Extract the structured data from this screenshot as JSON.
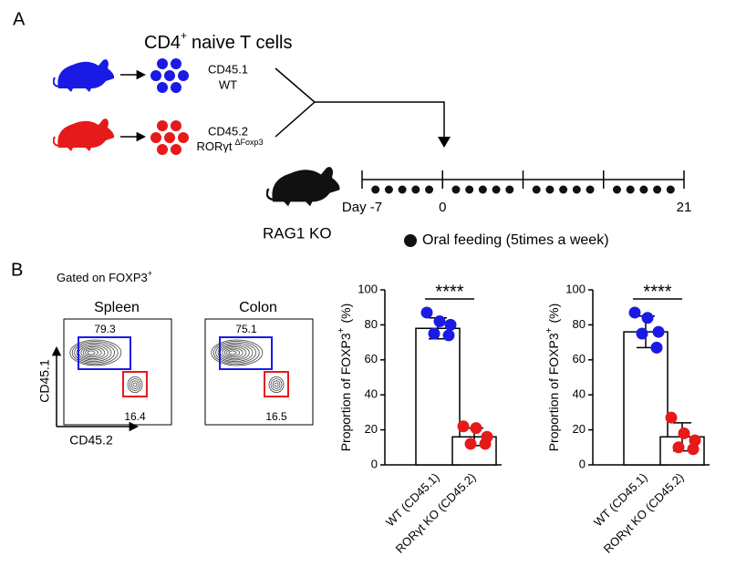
{
  "panel_a": {
    "label": "A",
    "title": "CD4",
    "title_sup": "+",
    "title_rest": "naive T cells",
    "donor_wt": {
      "line1": "CD45.1",
      "line2": "WT"
    },
    "donor_ko": {
      "line1": "CD45.2",
      "line2": "RORγt",
      "line2_sup": "ΔFoxp3"
    },
    "recipient": "RAG1 KO",
    "timeline": {
      "xlim": [
        -7,
        21
      ],
      "xticks": [
        {
          "value": -7,
          "label": "Day -7"
        },
        0,
        {
          "value": 7,
          "label": null
        },
        {
          "value": 14,
          "label": null
        },
        21
      ]
    },
    "legend": "Oral feeding (5times a week)"
  },
  "panel_b": {
    "label": "B",
    "gate": "Gated on FOXP3",
    "gate_sup": "+",
    "x_axis": "CD45.2",
    "y_axis": "CD45.1",
    "flow": [
      {
        "title": "Spleen",
        "upper": 79.3,
        "lower": 16.4
      },
      {
        "title": "Colon",
        "upper": 75.1,
        "lower": 16.5
      }
    ]
  },
  "chart_data": [
    {
      "type": "bar",
      "ylabel": "Proportion of FOXP3",
      "ylabel_sup": "+",
      "ylabel_unit": "(%)",
      "categories": [
        "WT (CD45.1)",
        "RORγt KO (CD45.2)"
      ],
      "values": [
        78,
        16
      ],
      "errors": [
        6,
        5
      ],
      "points": [
        [
          87,
          82,
          80,
          75,
          74
        ],
        [
          22,
          21,
          16,
          12,
          12
        ]
      ],
      "colors": [
        "#1a1ae6",
        "#e61a1a"
      ],
      "significance": "****",
      "ylim": [
        0,
        100
      ],
      "yticks": [
        0,
        20,
        40,
        60,
        80,
        100
      ]
    },
    {
      "type": "bar",
      "ylabel": "Proportion of FOXP3",
      "ylabel_sup": "+",
      "ylabel_unit": "(%)",
      "categories": [
        "WT (CD45.1)",
        "RORγt KO (CD45.2)"
      ],
      "values": [
        76,
        16
      ],
      "errors": [
        9,
        8
      ],
      "points": [
        [
          87,
          84,
          76,
          75,
          67
        ],
        [
          27,
          18,
          14,
          10,
          9
        ]
      ],
      "colors": [
        "#1a1ae6",
        "#e61a1a"
      ],
      "significance": "****",
      "ylim": [
        0,
        100
      ],
      "yticks": [
        0,
        20,
        40,
        60,
        80,
        100
      ]
    }
  ]
}
